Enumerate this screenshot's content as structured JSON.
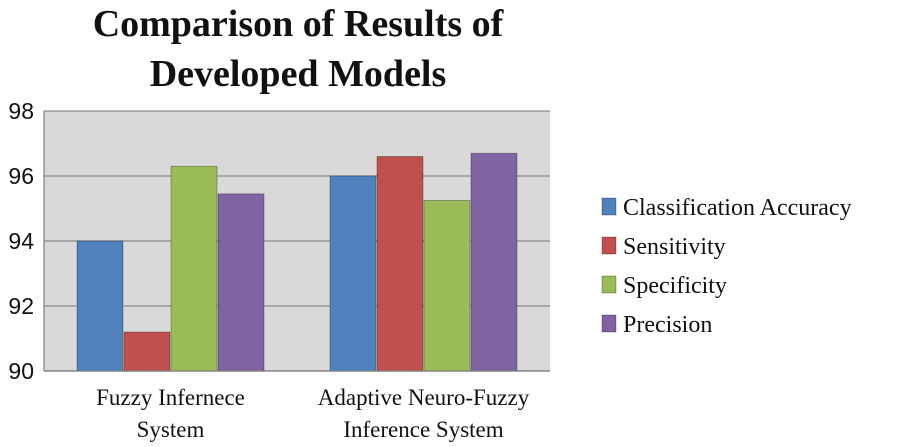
{
  "chart_data": {
    "type": "bar",
    "title_lines": [
      "Comparison of Results of",
      "Developed Models"
    ],
    "categories": [
      [
        "Fuzzy Infernece",
        "System"
      ],
      [
        "Adaptive Neuro-Fuzzy",
        "Inference System"
      ]
    ],
    "series": [
      {
        "name": "Classification Accuracy",
        "color": "#4f81bd",
        "values": [
          94.0,
          96.0
        ]
      },
      {
        "name": "Sensitivity",
        "color": "#c0504d",
        "values": [
          91.2,
          96.6
        ]
      },
      {
        "name": "Specificity",
        "color": "#9bbb59",
        "values": [
          96.3,
          95.25
        ]
      },
      {
        "name": "Precision",
        "color": "#8064a2",
        "values": [
          95.45,
          96.7
        ]
      }
    ],
    "ylim": [
      90,
      98
    ],
    "yticks": [
      "90",
      "92",
      "94",
      "96",
      "98"
    ],
    "xlabel": "",
    "ylabel": "",
    "grid": true,
    "legend_position": "right"
  }
}
